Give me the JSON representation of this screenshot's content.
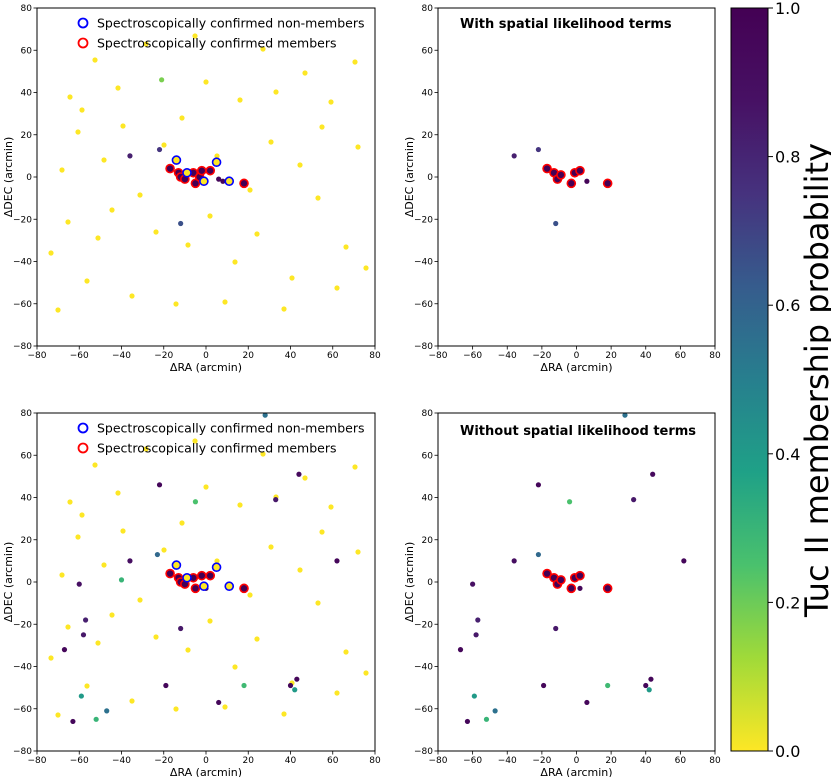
{
  "chart_data": [
    {
      "type": "scatter",
      "panel": "top-left",
      "title": "",
      "xlabel": "ΔRA (arcmin)",
      "ylabel": "ΔDEC (arcmin)",
      "xlim": [
        -80,
        80
      ],
      "ylim": [
        -80,
        80
      ],
      "xticks": [
        -80,
        -60,
        -40,
        -20,
        0,
        20,
        40,
        60,
        80
      ],
      "yticks": [
        -80,
        -60,
        -40,
        -20,
        0,
        20,
        40,
        60,
        80
      ],
      "legend": {
        "placement": "top-center",
        "entries": [
          {
            "label": "Spectroscopically confirmed non-members",
            "color": "#0000ff"
          },
          {
            "label": "Spectroscopically confirmed members",
            "color": "#ff0000"
          }
        ]
      },
      "colored_points": [
        {
          "x": -36,
          "y": 10,
          "p": 0.82
        },
        {
          "x": -22,
          "y": 13,
          "p": 0.74
        },
        {
          "x": -12,
          "y": -22,
          "p": 0.66
        },
        {
          "x": -21,
          "y": 46,
          "p": 0.18
        },
        {
          "x": -3,
          "y": 0,
          "p": 0.95
        },
        {
          "x": 6,
          "y": -1,
          "p": 0.95
        },
        {
          "x": 8,
          "y": -2,
          "p": 0.95
        }
      ],
      "members": [
        {
          "x": -17,
          "y": 4,
          "p": 1.0
        },
        {
          "x": -13,
          "y": 2,
          "p": 1.0
        },
        {
          "x": -12,
          "y": 0,
          "p": 1.0
        },
        {
          "x": -10,
          "y": -1,
          "p": 1.0
        },
        {
          "x": -6,
          "y": 2,
          "p": 1.0
        },
        {
          "x": -5,
          "y": -3,
          "p": 1.0
        },
        {
          "x": -3,
          "y": 0,
          "p": 1.0
        },
        {
          "x": -2,
          "y": 3,
          "p": 1.0
        },
        {
          "x": 2,
          "y": 3,
          "p": 1.0
        },
        {
          "x": 18,
          "y": -3,
          "p": 1.0
        }
      ],
      "nonmembers": [
        {
          "x": -14,
          "y": 8
        },
        {
          "x": -9,
          "y": 2
        },
        {
          "x": 5,
          "y": 7
        },
        {
          "x": -1,
          "y": -2
        },
        {
          "x": 11,
          "y": -2
        }
      ]
    },
    {
      "type": "scatter",
      "panel": "top-right",
      "title": "With spatial likelihood terms",
      "xlabel": "ΔRA (arcmin)",
      "ylabel": "ΔDEC (arcmin)",
      "xlim": [
        -80,
        80
      ],
      "ylim": [
        -80,
        80
      ],
      "xticks": [
        -80,
        -60,
        -40,
        -20,
        0,
        20,
        40,
        60,
        80
      ],
      "yticks": [
        -80,
        -60,
        -40,
        -20,
        0,
        20,
        40,
        60,
        80
      ],
      "colored_points": [
        {
          "x": -36,
          "y": 10,
          "p": 0.82
        },
        {
          "x": -22,
          "y": 13,
          "p": 0.74
        },
        {
          "x": -12,
          "y": -22,
          "p": 0.66
        },
        {
          "x": 6,
          "y": -2,
          "p": 0.97
        }
      ],
      "members": [
        {
          "x": -17,
          "y": 4,
          "p": 1.0
        },
        {
          "x": -13,
          "y": 2,
          "p": 1.0
        },
        {
          "x": -11,
          "y": -1,
          "p": 1.0
        },
        {
          "x": -9,
          "y": 1,
          "p": 1.0
        },
        {
          "x": -3,
          "y": -3,
          "p": 1.0
        },
        {
          "x": -1,
          "y": 2,
          "p": 1.0
        },
        {
          "x": 2,
          "y": 3,
          "p": 1.0
        },
        {
          "x": 18,
          "y": -3,
          "p": 1.0
        }
      ],
      "nonmembers": []
    },
    {
      "type": "scatter",
      "panel": "bottom-left",
      "title": "",
      "xlabel": "ΔRA (arcmin)",
      "ylabel": "ΔDEC (arcmin)",
      "xlim": [
        -80,
        80
      ],
      "ylim": [
        -80,
        80
      ],
      "xticks": [
        -80,
        -60,
        -40,
        -20,
        0,
        20,
        40,
        60,
        80
      ],
      "yticks": [
        -80,
        -60,
        -40,
        -20,
        0,
        20,
        40,
        60,
        80
      ],
      "legend": {
        "placement": "top-center",
        "entries": [
          {
            "label": "Spectroscopically confirmed non-members",
            "color": "#0000ff"
          },
          {
            "label": "Spectroscopically confirmed members",
            "color": "#ff0000"
          }
        ]
      },
      "colored_points": [
        {
          "x": 28,
          "y": 79,
          "p": 0.55
        },
        {
          "x": 44,
          "y": 51,
          "p": 0.93
        },
        {
          "x": -22,
          "y": 46,
          "p": 0.95
        },
        {
          "x": -5,
          "y": 38,
          "p": 0.25
        },
        {
          "x": 33,
          "y": 39,
          "p": 0.85
        },
        {
          "x": -36,
          "y": 10,
          "p": 0.9
        },
        {
          "x": -23,
          "y": 13,
          "p": 0.58
        },
        {
          "x": -60,
          "y": -1,
          "p": 0.88
        },
        {
          "x": 62,
          "y": 10,
          "p": 0.95
        },
        {
          "x": -40,
          "y": 1,
          "p": 0.3
        },
        {
          "x": -57,
          "y": -18,
          "p": 0.82
        },
        {
          "x": -58,
          "y": -25,
          "p": 0.85
        },
        {
          "x": -12,
          "y": -22,
          "p": 0.85
        },
        {
          "x": -67,
          "y": -32,
          "p": 0.95
        },
        {
          "x": -19,
          "y": -49,
          "p": 0.95
        },
        {
          "x": 18,
          "y": -49,
          "p": 0.28
        },
        {
          "x": 40,
          "y": -49,
          "p": 0.95
        },
        {
          "x": 43,
          "y": -46,
          "p": 0.95
        },
        {
          "x": 42,
          "y": -51,
          "p": 0.4
        },
        {
          "x": -59,
          "y": -54,
          "p": 0.4
        },
        {
          "x": 6,
          "y": -57,
          "p": 0.95
        },
        {
          "x": -47,
          "y": -61,
          "p": 0.55
        },
        {
          "x": -52,
          "y": -65,
          "p": 0.3
        },
        {
          "x": -63,
          "y": -66,
          "p": 0.95
        },
        {
          "x": 0,
          "y": -3,
          "p": 0.95
        }
      ],
      "members": [
        {
          "x": -17,
          "y": 4,
          "p": 1.0
        },
        {
          "x": -13,
          "y": 2,
          "p": 1.0
        },
        {
          "x": -12,
          "y": 0,
          "p": 1.0
        },
        {
          "x": -10,
          "y": -1,
          "p": 1.0
        },
        {
          "x": -6,
          "y": 2,
          "p": 1.0
        },
        {
          "x": -5,
          "y": -3,
          "p": 1.0
        },
        {
          "x": -2,
          "y": 3,
          "p": 1.0
        },
        {
          "x": 2,
          "y": 3,
          "p": 1.0
        },
        {
          "x": 18,
          "y": -3,
          "p": 1.0
        }
      ],
      "nonmembers": [
        {
          "x": -14,
          "y": 8
        },
        {
          "x": -9,
          "y": 2
        },
        {
          "x": 5,
          "y": 7
        },
        {
          "x": -1,
          "y": -2
        },
        {
          "x": 11,
          "y": -2
        }
      ]
    },
    {
      "type": "scatter",
      "panel": "bottom-right",
      "title": "Without spatial likelihood terms",
      "xlabel": "ΔRA (arcmin)",
      "ylabel": "ΔDEC (arcmin)",
      "xlim": [
        -80,
        80
      ],
      "ylim": [
        -80,
        80
      ],
      "xticks": [
        -80,
        -60,
        -40,
        -20,
        0,
        20,
        40,
        60,
        80
      ],
      "yticks": [
        -80,
        -60,
        -40,
        -20,
        0,
        20,
        40,
        60,
        80
      ],
      "colored_points": [
        {
          "x": 28,
          "y": 79,
          "p": 0.55
        },
        {
          "x": 44,
          "y": 51,
          "p": 0.93
        },
        {
          "x": -22,
          "y": 46,
          "p": 0.95
        },
        {
          "x": -4,
          "y": 38,
          "p": 0.25
        },
        {
          "x": 33,
          "y": 39,
          "p": 0.85
        },
        {
          "x": -36,
          "y": 10,
          "p": 0.9
        },
        {
          "x": -22,
          "y": 13,
          "p": 0.58
        },
        {
          "x": -60,
          "y": -1,
          "p": 0.88
        },
        {
          "x": 62,
          "y": 10,
          "p": 0.95
        },
        {
          "x": -57,
          "y": -18,
          "p": 0.82
        },
        {
          "x": -58,
          "y": -25,
          "p": 0.85
        },
        {
          "x": -12,
          "y": -22,
          "p": 0.85
        },
        {
          "x": -67,
          "y": -32,
          "p": 0.95
        },
        {
          "x": -19,
          "y": -49,
          "p": 0.95
        },
        {
          "x": 18,
          "y": -49,
          "p": 0.28
        },
        {
          "x": 40,
          "y": -49,
          "p": 0.95
        },
        {
          "x": 43,
          "y": -46,
          "p": 0.95
        },
        {
          "x": 42,
          "y": -51,
          "p": 0.4
        },
        {
          "x": -59,
          "y": -54,
          "p": 0.4
        },
        {
          "x": 6,
          "y": -57,
          "p": 0.95
        },
        {
          "x": -47,
          "y": -61,
          "p": 0.55
        },
        {
          "x": -52,
          "y": -65,
          "p": 0.3
        },
        {
          "x": -63,
          "y": -66,
          "p": 0.95
        },
        {
          "x": 2,
          "y": -3,
          "p": 0.95
        }
      ],
      "members": [
        {
          "x": -17,
          "y": 4,
          "p": 1.0
        },
        {
          "x": -13,
          "y": 2,
          "p": 1.0
        },
        {
          "x": -11,
          "y": -1,
          "p": 1.0
        },
        {
          "x": -9,
          "y": 1,
          "p": 1.0
        },
        {
          "x": -3,
          "y": -3,
          "p": 1.0
        },
        {
          "x": -1,
          "y": 2,
          "p": 1.0
        },
        {
          "x": 2,
          "y": 3,
          "p": 1.0
        },
        {
          "x": 18,
          "y": -3,
          "p": 1.0
        }
      ],
      "nonmembers": []
    }
  ],
  "colorbar": {
    "label": "Tuc II membership probability",
    "colormap": "viridis",
    "range": [
      0.0,
      1.0
    ],
    "ticks": [
      "0.0",
      "0.2",
      "0.4",
      "0.6",
      "0.8",
      "1.0"
    ]
  },
  "colors": {
    "member_ring": "#ff0000",
    "nonmember_ring": "#0000ff",
    "low_prob": "#fde725",
    "high_prob": "#440154"
  }
}
